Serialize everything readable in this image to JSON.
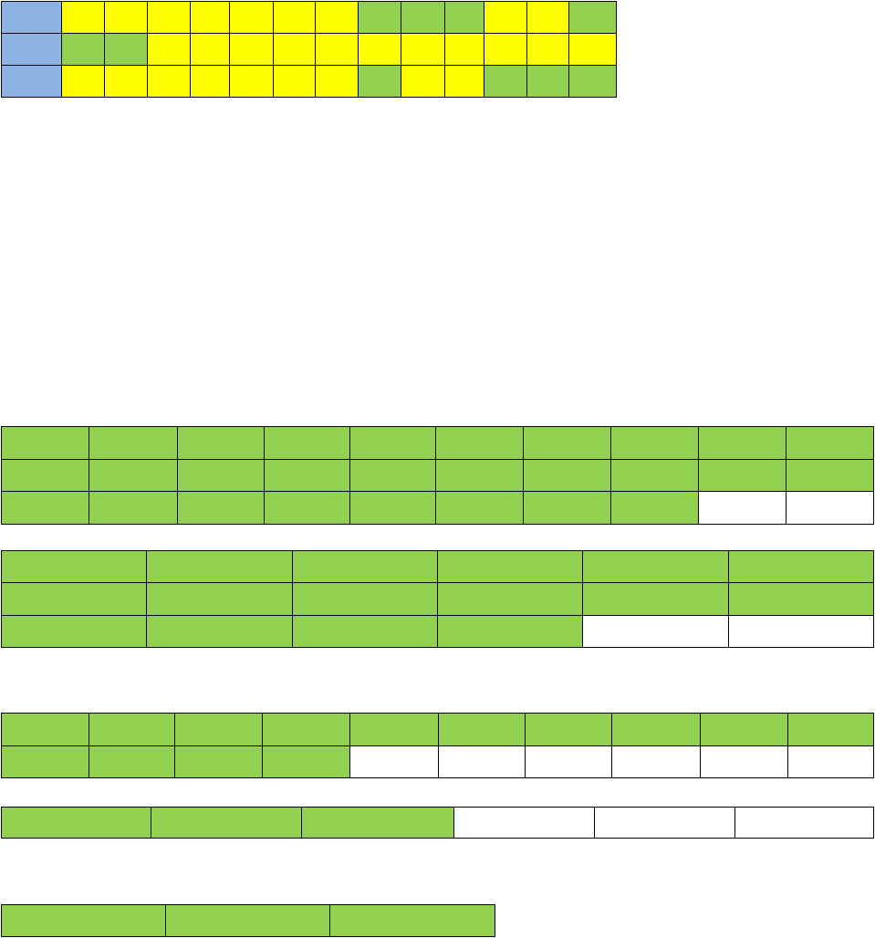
{
  "colors": {
    "blue": "#8db3e2",
    "yellow": "#ffff00",
    "green": "#92d050",
    "white": "#ffffff",
    "border": "#000000"
  },
  "tables": [
    {
      "name": "table-top-mixed",
      "rows": [
        [
          "blue",
          "yellow",
          "yellow",
          "yellow",
          "yellow",
          "yellow",
          "yellow",
          "yellow",
          "green",
          "green",
          "green",
          "yellow",
          "yellow",
          "green"
        ],
        [
          "blue",
          "green",
          "green",
          "yellow",
          "yellow",
          "yellow",
          "yellow",
          "yellow",
          "yellow",
          "yellow",
          "yellow",
          "yellow",
          "yellow",
          "yellow"
        ],
        [
          "blue",
          "yellow",
          "yellow",
          "yellow",
          "yellow",
          "yellow",
          "yellow",
          "yellow",
          "green",
          "yellow",
          "yellow",
          "green",
          "green",
          "green"
        ]
      ]
    },
    {
      "name": "table-ten-col-three-row",
      "rows": [
        [
          "green",
          "green",
          "green",
          "green",
          "green",
          "green",
          "green",
          "green",
          "green",
          "green"
        ],
        [
          "green",
          "green",
          "green",
          "green",
          "green",
          "green",
          "green",
          "green",
          "green",
          "green"
        ],
        [
          "green",
          "green",
          "green",
          "green",
          "green",
          "green",
          "green",
          "green",
          "white",
          "white"
        ]
      ]
    },
    {
      "name": "table-six-col-three-row",
      "rows": [
        [
          "green",
          "green",
          "green",
          "green",
          "green",
          "green"
        ],
        [
          "green",
          "green",
          "green",
          "green",
          "green",
          "green"
        ],
        [
          "green",
          "green",
          "green",
          "green",
          "white",
          "white"
        ]
      ]
    },
    {
      "name": "table-ten-col-two-row",
      "rows": [
        [
          "green",
          "green",
          "green",
          "green",
          "green",
          "green",
          "green",
          "green",
          "green",
          "green"
        ],
        [
          "green",
          "green",
          "green",
          "green",
          "white",
          "white",
          "white",
          "white",
          "white",
          "white"
        ]
      ]
    },
    {
      "name": "table-six-col-one-row",
      "rows": [
        [
          "green",
          "green",
          "green",
          "white",
          "white",
          "white"
        ]
      ]
    },
    {
      "name": "table-three-col-one-row",
      "rows": [
        [
          "green",
          "green",
          "green"
        ]
      ]
    }
  ]
}
